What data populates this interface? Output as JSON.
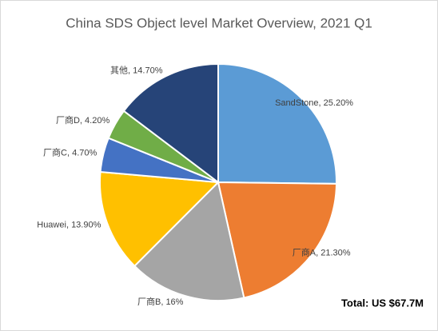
{
  "chart_data": {
    "type": "pie",
    "title": "China SDS Object level Market Overview, 2021 Q1",
    "categories": [
      "SandStone",
      "厂商A",
      "厂商B",
      "Huawei",
      "厂商C",
      "厂商D",
      "其他"
    ],
    "values": [
      25.2,
      21.3,
      16,
      13.9,
      4.7,
      4.2,
      14.7
    ],
    "value_labels": [
      "25.20%",
      "21.30%",
      "16%",
      "13.90%",
      "4.70%",
      "4.20%",
      "14.70%"
    ],
    "label_separator": ", ",
    "colors": [
      "#5b9bd5",
      "#ed7d31",
      "#a5a5a5",
      "#ffc000",
      "#4472c4",
      "#70ad47",
      "#264478"
    ],
    "annotations": [
      "Total: US $67.7M"
    ]
  }
}
